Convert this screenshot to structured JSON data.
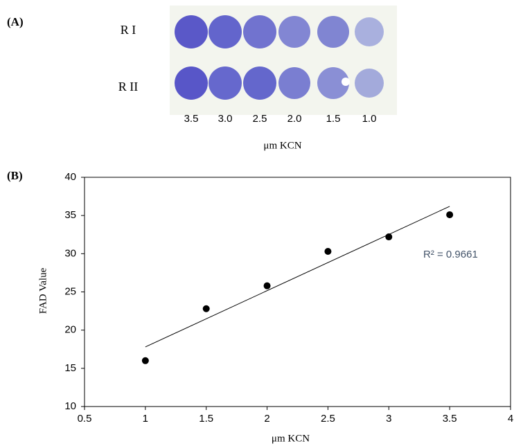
{
  "panel_a": {
    "label": "(A)",
    "rows": [
      "R I",
      "R II"
    ],
    "column_labels": [
      "3.5",
      "3.0",
      "2.5",
      "2.0",
      "1.5",
      "1.0"
    ],
    "x_label": "μm KCN"
  },
  "chart_data": {
    "type": "scatter",
    "label": "(B)",
    "x_label": "μm KCN",
    "y_label": "FAD Value",
    "x": [
      1,
      1.5,
      2,
      2.5,
      3,
      3.5
    ],
    "y": [
      16,
      22.8,
      25.8,
      30.3,
      32.2,
      35.1
    ],
    "color": "#000000",
    "trendline": {
      "x": [
        1,
        3.5
      ],
      "y": [
        17.8,
        36.2
      ],
      "color": "#000000"
    },
    "annotation": "R² = 0.9661",
    "xlim": [
      0.5,
      4
    ],
    "xticks": [
      0.5,
      1,
      1.5,
      2,
      2.5,
      3,
      3.5,
      4
    ],
    "ylim": [
      10,
      40
    ],
    "yticks": [
      10,
      15,
      20,
      25,
      30,
      35,
      40
    ]
  }
}
